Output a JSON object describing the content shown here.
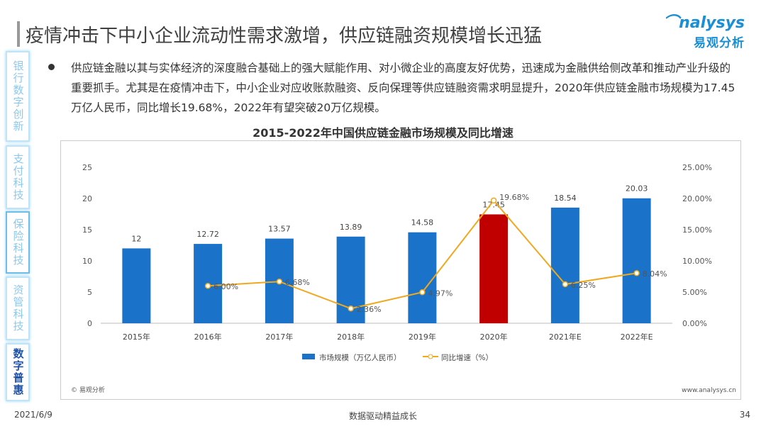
{
  "header": {
    "title": "疫情冲击下中小企业流动性需求激增，供应链融资规模增长迅猛",
    "logo_en": "nalysys",
    "logo_cn": "易观分析"
  },
  "sidebar": {
    "items": [
      {
        "label": "银行数字创新",
        "state": "normal"
      },
      {
        "label": "支付科技",
        "state": "normal"
      },
      {
        "label": "保险科技",
        "state": "selected-border"
      },
      {
        "label": "资管科技",
        "state": "normal"
      },
      {
        "label": "数字普惠",
        "state": "active"
      }
    ]
  },
  "body": {
    "paragraph": "供应链金融以其与实体经济的深度融合基础上的强大赋能作用、对小微企业的高度友好优势，迅速成为金融供给侧改革和推动产业升级的重要抓手。尤其是在疫情冲击下，中小企业对应收账款融资、反向保理等供应链融资需求明显提升，2020年供应链金融市场规模为17.45万亿人民币，同比增长19.68%，2022年有望突破20万亿规模。"
  },
  "chart_data": {
    "type": "bar+line",
    "title": "2015-2022年中国供应链金融市场规模及同比增速",
    "categories": [
      "2015年",
      "2016年",
      "2017年",
      "2018年",
      "2019年",
      "2020年",
      "2021年E",
      "2022年E"
    ],
    "series": [
      {
        "name": "市场规模（万亿人民币）",
        "type": "bar",
        "axis": "left",
        "values": [
          12,
          12.72,
          13.57,
          13.89,
          14.58,
          17.45,
          18.54,
          20.03
        ],
        "labels": [
          "12",
          "12.72",
          "13.57",
          "13.89",
          "14.58",
          "17.45",
          "18.54",
          "20.03"
        ],
        "color": "#1a73c9",
        "highlight_index": 5,
        "highlight_color": "#c00000"
      },
      {
        "name": "同比增速（%）",
        "type": "line",
        "axis": "right",
        "values": [
          null,
          6.0,
          6.68,
          2.36,
          4.97,
          19.68,
          6.25,
          8.04
        ],
        "labels": [
          "",
          "6.00%",
          "6.68%",
          "2.36%",
          "4.97%",
          "19.68%",
          "6.25%",
          "8.04%"
        ],
        "color": "#f0a81e"
      }
    ],
    "left_axis": {
      "ylim": [
        0,
        25
      ],
      "ticks": [
        "0",
        "5",
        "10",
        "15",
        "20",
        "25"
      ]
    },
    "right_axis": {
      "ylim": [
        0,
        25
      ],
      "ticks": [
        "0.00%",
        "5.00%",
        "10.00%",
        "15.00%",
        "20.00%",
        "25.00%"
      ]
    },
    "legend": "bottom",
    "grid": false,
    "source": "© 易观分析",
    "url": "www.analysys.cn"
  },
  "footer": {
    "date": "2021/6/9",
    "slogan": "数据驱动精益成长",
    "page": "34"
  }
}
